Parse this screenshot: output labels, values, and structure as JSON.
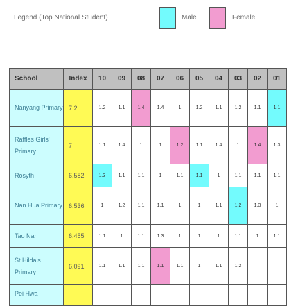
{
  "colors": {
    "male": "#73fbfd",
    "female": "#f29cd0",
    "index": "#fffa55",
    "school": "#ccfdfe",
    "header": "#c0c0c0"
  },
  "legend": {
    "title": "Legend (Top National Student)",
    "male_label": "Male",
    "female_label": "Female"
  },
  "table": {
    "headers": [
      "School",
      "Index",
      "10",
      "09",
      "08",
      "07",
      "06",
      "05",
      "04",
      "03",
      "02",
      "01"
    ],
    "rows": [
      {
        "school": "Nanyang Primary",
        "index": "7.2",
        "values": [
          "1.2",
          "1.1",
          "1.4",
          "1.4",
          "1",
          "1.2",
          "1.1",
          "1.2",
          "1.1",
          "1.1"
        ],
        "highlights": [
          "",
          "",
          "female",
          "",
          "",
          "",
          "",
          "",
          "",
          "male"
        ]
      },
      {
        "school": "Raffles Girls' Primary",
        "index": "7",
        "values": [
          "1.1",
          "1.4",
          "1",
          "1",
          "1.2",
          "1.1",
          "1.4",
          "1",
          "1.4",
          "1.3"
        ],
        "highlights": [
          "",
          "",
          "",
          "",
          "female",
          "",
          "",
          "",
          "female",
          ""
        ]
      },
      {
        "school": "Rosyth",
        "index": "6.582",
        "values": [
          "1.3",
          "1.1",
          "1.1",
          "1",
          "1.1",
          "1.1",
          "1",
          "1.1",
          "1.1",
          "1.1"
        ],
        "highlights": [
          "male",
          "",
          "",
          "",
          "",
          "male",
          "",
          "",
          "",
          ""
        ]
      },
      {
        "school": "Nan Hua Primary",
        "index": "6.536",
        "values": [
          "1",
          "1.2",
          "1.1",
          "1.1",
          "1",
          "1",
          "1.1",
          "1.2",
          "1.3",
          "1"
        ],
        "highlights": [
          "",
          "",
          "",
          "",
          "",
          "",
          "",
          "male",
          "",
          ""
        ]
      },
      {
        "school": "Tao Nan",
        "index": "6.455",
        "values": [
          "1.1",
          "1",
          "1.1",
          "1.3",
          "1",
          "1",
          "1",
          "1.1",
          "1",
          "1.1"
        ],
        "highlights": [
          "",
          "",
          "",
          "",
          "",
          "",
          "",
          "",
          "",
          ""
        ]
      },
      {
        "school": "St Hilda's Primary",
        "index": "6.091",
        "values": [
          "1.1",
          "1.1",
          "1.1",
          "1.1",
          "1.1",
          "1",
          "1.1",
          "1.2",
          "",
          ""
        ],
        "highlights": [
          "",
          "",
          "",
          "female",
          "",
          "",
          "",
          "",
          "",
          ""
        ]
      },
      {
        "school": "Pei Hwa",
        "index": "",
        "values": [
          "",
          "",
          "",
          "",
          "",
          "",
          "",
          "",
          "",
          ""
        ],
        "highlights": [
          "",
          "",
          "",
          "",
          "",
          "",
          "",
          "",
          "",
          ""
        ]
      }
    ]
  }
}
